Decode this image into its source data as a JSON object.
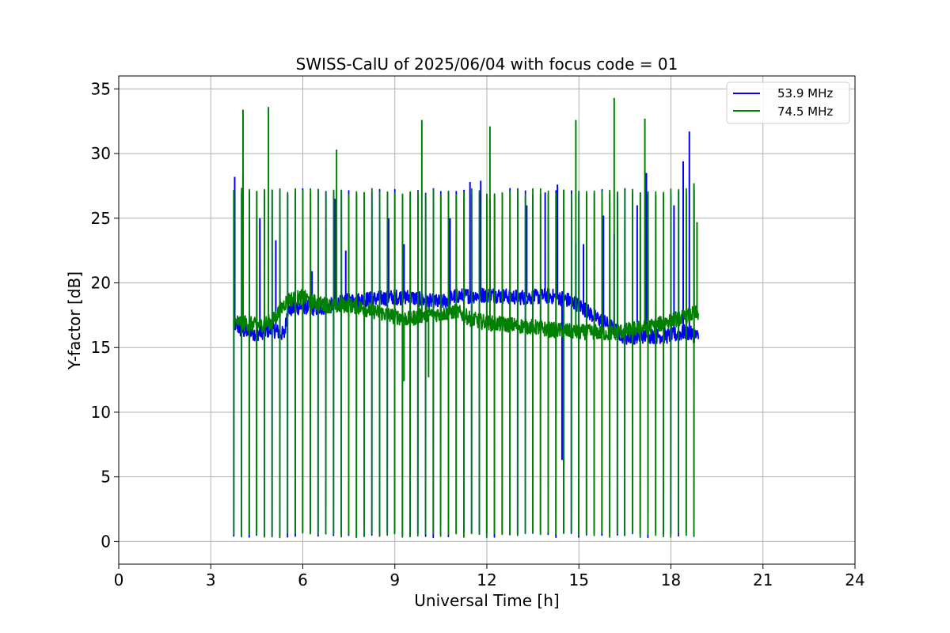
{
  "chart_data": {
    "type": "line",
    "title": "SWISS-CalU of 2025/06/04 with focus code = 01",
    "xlabel": "Universal Time [h]",
    "ylabel": "Y-factor [dB]",
    "xlim": [
      0,
      24
    ],
    "ylim": [
      -1.75,
      36
    ],
    "x_ticks": [
      0,
      3,
      6,
      9,
      12,
      15,
      18,
      21,
      24
    ],
    "y_ticks": [
      0,
      5,
      10,
      15,
      20,
      25,
      30,
      35
    ],
    "grid": true,
    "legend_position": "top-right",
    "calibration_dips": {
      "x": [
        3.75,
        4.0,
        4.25,
        4.5,
        4.75,
        5.0,
        5.25,
        5.5,
        5.75,
        6.0,
        6.25,
        6.5,
        6.75,
        7.0,
        7.25,
        7.5,
        7.75,
        8.0,
        8.25,
        8.5,
        8.75,
        9.0,
        9.25,
        9.5,
        9.75,
        10.0,
        10.25,
        10.5,
        10.75,
        11.0,
        11.25,
        11.5,
        11.75,
        12.0,
        12.25,
        12.5,
        12.75,
        13.0,
        13.25,
        13.5,
        13.75,
        14.0,
        14.25,
        14.5,
        14.75,
        15.0,
        15.25,
        15.5,
        15.75,
        16.0,
        16.25,
        16.5,
        16.75,
        17.0,
        17.25,
        17.5,
        17.75,
        18.0,
        18.25,
        18.5,
        18.75
      ],
      "low": 0.3
    },
    "series": [
      {
        "name": "53.9 MHz",
        "color": "#0000ff",
        "baseline": {
          "x": [
            3.75,
            4.0,
            4.5,
            5.0,
            5.4,
            5.5,
            6.0,
            6.5,
            7.0,
            7.5,
            8.0,
            8.5,
            9.0,
            9.5,
            10.0,
            10.5,
            11.0,
            11.5,
            12.0,
            12.5,
            13.0,
            13.5,
            14.0,
            14.5,
            15.0,
            15.5,
            16.0,
            16.5,
            17.0,
            17.5,
            18.0,
            18.5,
            18.9
          ],
          "y": [
            16.9,
            16.3,
            16.1,
            16.4,
            16.0,
            17.9,
            18.2,
            18.0,
            18.3,
            18.6,
            18.7,
            18.8,
            18.9,
            18.9,
            18.6,
            18.5,
            19.0,
            19.0,
            19.1,
            19.0,
            18.9,
            18.9,
            19.0,
            18.8,
            18.3,
            17.4,
            16.7,
            15.8,
            15.9,
            15.9,
            15.9,
            16.2,
            15.8
          ]
        },
        "peaks": {
          "x": [
            3.78,
            4.05,
            4.6,
            5.12,
            6.3,
            7.05,
            7.4,
            8.8,
            9.3,
            10.8,
            11.45,
            11.8,
            12.1,
            13.3,
            13.9,
            14.3,
            14.45,
            14.9,
            15.15,
            15.8,
            16.15,
            16.9,
            17.2,
            18.1,
            18.4,
            18.6
          ],
          "y": [
            28.2,
            28.4,
            25.0,
            23.3,
            20.9,
            26.5,
            22.5,
            25.0,
            23.0,
            25.0,
            27.8,
            27.9,
            26.5,
            26.0,
            27.0,
            27.6,
            6.3,
            23.1,
            23.0,
            25.2,
            23.8,
            26.0,
            28.5,
            26.0,
            29.4,
            31.7
          ]
        }
      },
      {
        "name": "74.5 MHz",
        "color": "#008000",
        "baseline": {
          "x": [
            3.75,
            4.0,
            4.5,
            5.0,
            5.5,
            6.0,
            6.5,
            7.0,
            7.5,
            8.0,
            8.5,
            9.0,
            9.5,
            10.0,
            10.5,
            11.0,
            11.5,
            12.0,
            12.5,
            13.0,
            13.5,
            14.0,
            14.5,
            15.0,
            15.5,
            16.0,
            16.5,
            17.0,
            17.5,
            18.0,
            18.5,
            18.9
          ],
          "y": [
            16.9,
            17.0,
            16.7,
            17.0,
            18.7,
            18.9,
            18.4,
            18.2,
            18.3,
            18.0,
            17.7,
            17.4,
            17.2,
            17.6,
            17.6,
            17.8,
            17.2,
            16.9,
            16.8,
            16.7,
            16.6,
            16.4,
            16.3,
            16.2,
            16.2,
            16.1,
            16.3,
            16.5,
            16.7,
            17.1,
            17.4,
            17.7
          ]
        },
        "peaks": {
          "x": [
            3.75,
            4.05,
            4.88,
            7.1,
            9.88,
            12.1,
            14.9,
            16.15,
            17.15,
            18.75,
            18.85,
            9.3,
            10.1
          ],
          "y": [
            27.2,
            33.4,
            33.6,
            30.3,
            32.6,
            32.1,
            32.6,
            34.3,
            32.7,
            27.7,
            24.7,
            12.4,
            12.7
          ]
        }
      }
    ]
  }
}
